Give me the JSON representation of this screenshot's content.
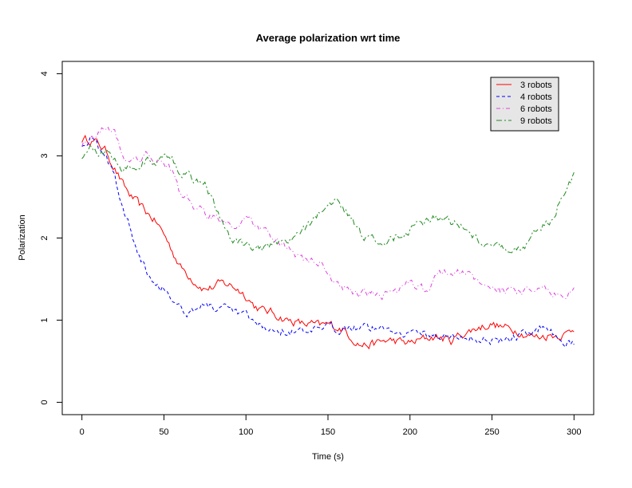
{
  "chart_data": {
    "type": "line",
    "title": "Average polarization wrt time",
    "xlabel": "Time (s)",
    "ylabel": "Polarization",
    "xlim": [
      -12,
      312
    ],
    "ylim": [
      -0.15,
      4.15
    ],
    "xticks": [
      0,
      50,
      100,
      150,
      200,
      250,
      300
    ],
    "yticks": [
      0,
      1,
      2,
      3,
      4
    ],
    "legend_position": "top-right",
    "x": [
      0,
      5,
      10,
      15,
      20,
      25,
      30,
      35,
      40,
      45,
      50,
      55,
      60,
      65,
      70,
      75,
      80,
      85,
      90,
      95,
      100,
      105,
      110,
      115,
      120,
      125,
      130,
      135,
      140,
      145,
      150,
      155,
      160,
      165,
      170,
      175,
      180,
      185,
      190,
      195,
      200,
      205,
      210,
      215,
      220,
      225,
      230,
      235,
      240,
      245,
      250,
      255,
      260,
      265,
      270,
      275,
      280,
      285,
      290,
      295,
      300
    ],
    "series": [
      {
        "name": "3 robots",
        "color": "#ff0000",
        "dash": "solid",
        "values": [
          3.2,
          3.2,
          3.15,
          3.05,
          2.85,
          2.65,
          2.5,
          2.4,
          2.3,
          2.2,
          2.05,
          1.85,
          1.65,
          1.55,
          1.45,
          1.38,
          1.4,
          1.45,
          1.43,
          1.38,
          1.3,
          1.18,
          1.12,
          1.1,
          1.05,
          1.0,
          0.98,
          0.95,
          0.95,
          0.93,
          0.95,
          0.92,
          0.88,
          0.78,
          0.7,
          0.7,
          0.72,
          0.75,
          0.75,
          0.73,
          0.72,
          0.75,
          0.78,
          0.8,
          0.78,
          0.75,
          0.82,
          0.85,
          0.9,
          0.93,
          0.95,
          0.92,
          0.9,
          0.88,
          0.83,
          0.8,
          0.8,
          0.82,
          0.82,
          0.83,
          0.9
        ]
      },
      {
        "name": "4 robots",
        "color": "#0000ff",
        "dash": "dashed",
        "values": [
          3.15,
          3.2,
          3.1,
          3.0,
          2.75,
          2.35,
          2.1,
          1.8,
          1.6,
          1.45,
          1.4,
          1.28,
          1.15,
          1.1,
          1.15,
          1.2,
          1.15,
          1.13,
          1.12,
          1.08,
          1.05,
          0.95,
          0.9,
          0.9,
          0.88,
          0.87,
          0.86,
          0.85,
          0.85,
          0.88,
          0.9,
          0.9,
          0.92,
          0.93,
          0.93,
          0.9,
          0.9,
          0.9,
          0.88,
          0.86,
          0.84,
          0.84,
          0.83,
          0.82,
          0.8,
          0.8,
          0.79,
          0.78,
          0.78,
          0.77,
          0.76,
          0.76,
          0.78,
          0.8,
          0.82,
          0.85,
          0.93,
          0.88,
          0.8,
          0.76,
          0.7
        ]
      },
      {
        "name": "6 robots",
        "color": "#dd44dd",
        "dash": "dash-dot",
        "values": [
          3.15,
          3.2,
          3.3,
          3.35,
          3.3,
          3.0,
          2.95,
          2.95,
          3.0,
          2.95,
          2.95,
          2.8,
          2.55,
          2.45,
          2.35,
          2.3,
          2.25,
          2.22,
          2.18,
          2.15,
          2.2,
          2.18,
          2.1,
          2.0,
          1.95,
          1.85,
          1.8,
          1.75,
          1.7,
          1.68,
          1.6,
          1.42,
          1.38,
          1.35,
          1.33,
          1.32,
          1.3,
          1.32,
          1.35,
          1.4,
          1.45,
          1.4,
          1.38,
          1.5,
          1.6,
          1.6,
          1.58,
          1.55,
          1.5,
          1.45,
          1.42,
          1.38,
          1.35,
          1.33,
          1.34,
          1.36,
          1.38,
          1.35,
          1.32,
          1.3,
          1.4
        ]
      },
      {
        "name": "9 robots",
        "color": "#228b22",
        "dash": "long-dash-dot",
        "values": [
          3.0,
          3.1,
          3.0,
          3.05,
          3.0,
          2.85,
          2.88,
          2.9,
          2.95,
          2.9,
          2.95,
          3.0,
          2.8,
          2.75,
          2.7,
          2.65,
          2.45,
          2.2,
          2.0,
          1.95,
          1.9,
          1.88,
          1.87,
          1.88,
          1.9,
          1.95,
          2.0,
          2.1,
          2.2,
          2.3,
          2.4,
          2.45,
          2.35,
          2.2,
          2.05,
          2.0,
          1.95,
          1.95,
          2.0,
          2.05,
          2.1,
          2.15,
          2.2,
          2.25,
          2.25,
          2.2,
          2.15,
          2.1,
          2.0,
          1.95,
          1.95,
          1.9,
          1.85,
          1.85,
          1.9,
          2.05,
          2.15,
          2.2,
          2.4,
          2.55,
          2.75
        ]
      }
    ]
  }
}
